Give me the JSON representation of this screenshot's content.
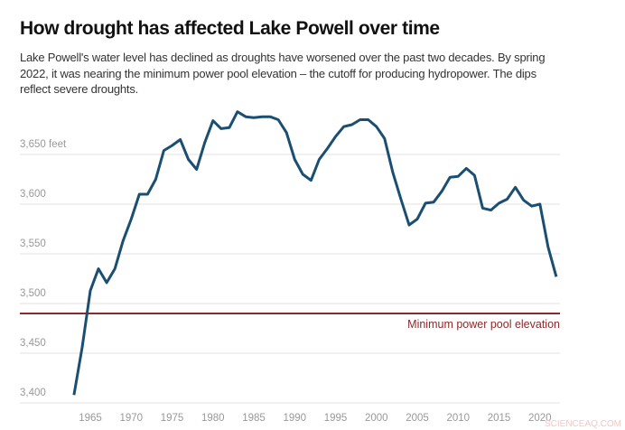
{
  "title": "How drought has affected Lake Powell over time",
  "subtitle": "Lake Powell's water level has declined as droughts have worsened over the past two decades. By spring 2022, it was nearing the minimum power pool elevation – the cutoff for producing hydropower. The dips reflect severe droughts.",
  "watermark": "SCIENCEAQ.COM",
  "colors": {
    "line": "#1b4f72",
    "reference": "#8b2a2a",
    "grid": "#e2e2e2",
    "ticks": "#999999"
  },
  "chart_data": {
    "type": "line",
    "title": "How drought has affected Lake Powell over time",
    "xlabel": "",
    "ylabel": "",
    "grid": true,
    "ylim": [
      3400,
      3700
    ],
    "xlim": [
      1963,
      2022
    ],
    "y_ticks": [
      3400,
      3450,
      3500,
      3550,
      3600,
      3650
    ],
    "y_tick_labels": [
      "3,400",
      "3,450",
      "3,500",
      "3,550",
      "3,600",
      "3,650 feet"
    ],
    "x_ticks": [
      1965,
      1970,
      1975,
      1980,
      1985,
      1990,
      1995,
      2000,
      2005,
      2010,
      2015,
      2020
    ],
    "x_tick_labels": [
      "1965",
      "1970",
      "1975",
      "1980",
      "1985",
      "1990",
      "1995",
      "2000",
      "2005",
      "2010",
      "2015",
      "2020"
    ],
    "x": [
      1963,
      1964,
      1965,
      1966,
      1967,
      1968,
      1969,
      1970,
      1971,
      1972,
      1973,
      1974,
      1975,
      1976,
      1977,
      1978,
      1979,
      1980,
      1981,
      1982,
      1983,
      1984,
      1985,
      1986,
      1987,
      1988,
      1989,
      1990,
      1991,
      1992,
      1993,
      1994,
      1995,
      1996,
      1997,
      1998,
      1999,
      2000,
      2001,
      2002,
      2003,
      2004,
      2005,
      2006,
      2007,
      2008,
      2009,
      2010,
      2011,
      2012,
      2013,
      2014,
      2015,
      2016,
      2017,
      2018,
      2019,
      2020,
      2021,
      2022
    ],
    "series": [
      {
        "values": [
          3408,
          3456,
          3513,
          3535,
          3521,
          3535,
          3563,
          3585,
          3610,
          3610,
          3625,
          3654,
          3659,
          3665,
          3645,
          3635,
          3662,
          3684,
          3676,
          3677,
          3693,
          3688,
          3687,
          3688,
          3688,
          3685,
          3672,
          3645,
          3630,
          3624,
          3645,
          3656,
          3668,
          3678,
          3680,
          3685,
          3685,
          3678,
          3666,
          3632,
          3605,
          3579,
          3585,
          3601,
          3602,
          3613,
          3627,
          3628,
          3636,
          3629,
          3596,
          3594,
          3601,
          3605,
          3617,
          3604,
          3598,
          3600,
          3557,
          3527
        ]
      }
    ],
    "reference_line": {
      "value": 3490,
      "label": "Minimum power pool elevation"
    }
  }
}
